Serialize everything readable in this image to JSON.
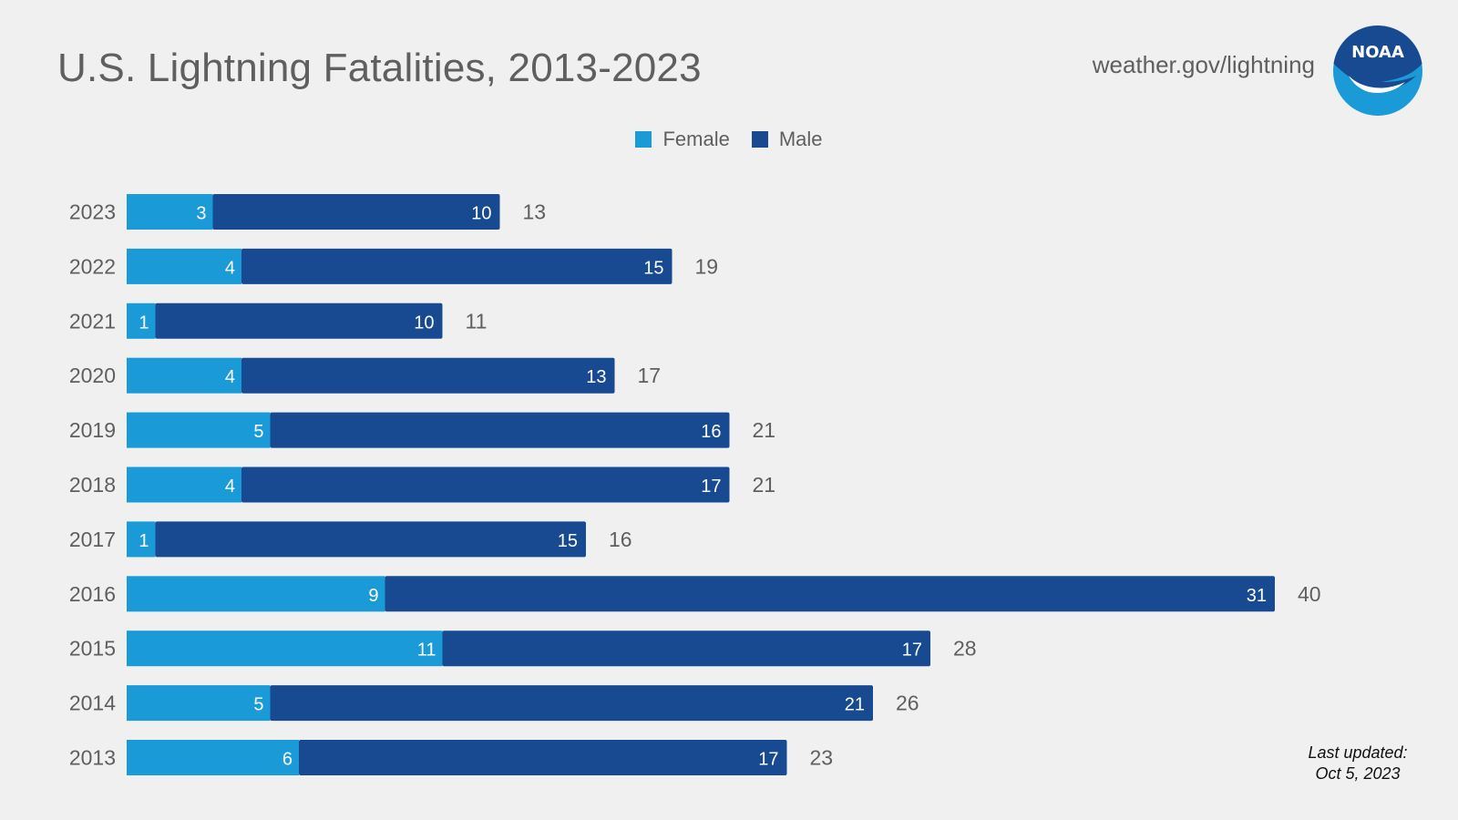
{
  "header": {
    "title": "U.S. Lightning Fatalities, 2013-2023",
    "site_url": "weather.gov/lightning",
    "logo_text": "NOAA"
  },
  "footer": {
    "last_updated_label": "Last updated:",
    "last_updated_date": "Oct 5, 2023"
  },
  "colors": {
    "female": "#1a9bd7",
    "male": "#174a90",
    "label_text": "#5f5f5f",
    "background": "#f0f0f0"
  },
  "chart_data": {
    "type": "bar",
    "orientation": "horizontal",
    "stacked": true,
    "title": "U.S. Lightning Fatalities, 2013-2023",
    "categories": [
      "2023",
      "2022",
      "2021",
      "2020",
      "2019",
      "2018",
      "2017",
      "2016",
      "2015",
      "2014",
      "2013"
    ],
    "series": [
      {
        "name": "Female",
        "values": [
          3,
          4,
          1,
          4,
          5,
          4,
          1,
          9,
          11,
          5,
          6
        ]
      },
      {
        "name": "Male",
        "values": [
          10,
          15,
          10,
          13,
          16,
          17,
          15,
          31,
          17,
          21,
          17
        ]
      }
    ],
    "totals": [
      13,
      19,
      11,
      17,
      21,
      21,
      16,
      40,
      28,
      26,
      23
    ],
    "xlim": [
      0,
      40
    ],
    "grid": false,
    "legend": "top-center"
  }
}
